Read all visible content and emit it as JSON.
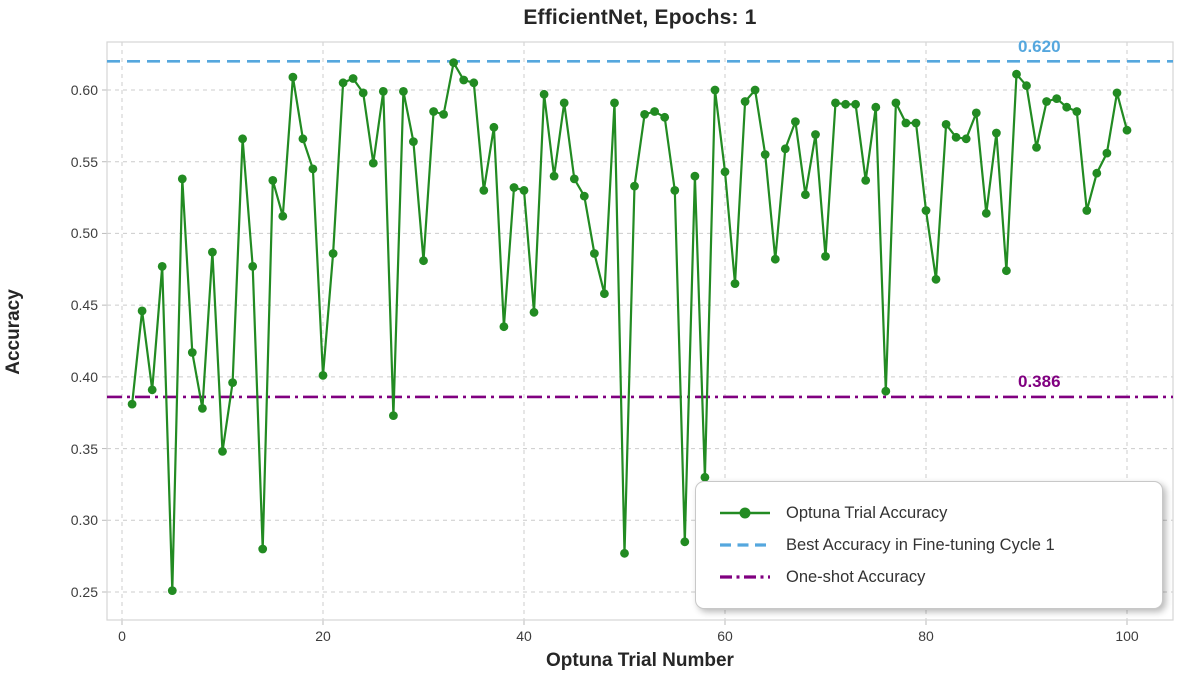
{
  "title": "EfficientNet, Epochs: 1",
  "axes": {
    "x": {
      "label": "Optuna Trial Number",
      "ticks": [
        0,
        20,
        40,
        60,
        80,
        100
      ],
      "range": [
        -1.5,
        104.6
      ]
    },
    "y": {
      "label": "Accuracy",
      "tick_labels": [
        "0.25",
        "0.30",
        "0.35",
        "0.40",
        "0.45",
        "0.50",
        "0.55",
        "0.60"
      ],
      "tick_values": [
        0.25,
        0.3,
        0.35,
        0.4,
        0.45,
        0.5,
        0.55,
        0.6
      ],
      "range": [
        0.2305,
        0.6335
      ]
    }
  },
  "reference_lines": {
    "best": {
      "annotation": "0.620",
      "value": 0.62,
      "color": "#55A7DE",
      "dash": "13 7"
    },
    "one_shot": {
      "annotation": "0.386",
      "value": 0.386,
      "color": "#800080",
      "dash": "15 5 3 5"
    }
  },
  "legend": {
    "items": [
      {
        "label": "Optuna Trial Accuracy",
        "color": "#228B22",
        "style": "solid-line-with-marker"
      },
      {
        "label": "Best Accuracy in Fine-tuning Cycle 1",
        "color": "#55A7DE",
        "style": "dashed"
      },
      {
        "label": "One-shot Accuracy",
        "color": "#800080",
        "style": "dash-dot"
      }
    ]
  },
  "style": {
    "series_color": "#228B22",
    "grid_color": "#cccccc",
    "border_color": "#d6d6d6",
    "tick_color": "#bbbbbb"
  },
  "chart_data": {
    "type": "line",
    "title": "EfficientNet, Epochs: 1",
    "xlabel": "Optuna Trial Number",
    "ylabel": "Accuracy",
    "x": {
      "start": 1,
      "step": 1,
      "count": 100
    },
    "series": [
      {
        "name": "Optuna Trial Accuracy",
        "color": "#228B22",
        "marker": "circle",
        "values": [
          0.381,
          0.446,
          0.391,
          0.477,
          0.251,
          0.538,
          0.417,
          0.378,
          0.487,
          0.348,
          0.396,
          0.566,
          0.477,
          0.28,
          0.537,
          0.512,
          0.609,
          0.566,
          0.545,
          0.401,
          0.486,
          0.605,
          0.608,
          0.598,
          0.549,
          0.599,
          0.373,
          0.599,
          0.564,
          0.481,
          0.585,
          0.583,
          0.619,
          0.607,
          0.605,
          0.53,
          0.574,
          0.435,
          0.532,
          0.53,
          0.445,
          0.597,
          0.54,
          0.591,
          0.538,
          0.526,
          0.486,
          0.458,
          0.591,
          0.277,
          0.533,
          0.583,
          0.585,
          0.581,
          0.53,
          0.285,
          0.54,
          0.33,
          0.6,
          0.543,
          0.465,
          0.592,
          0.6,
          0.555,
          0.482,
          0.559,
          0.578,
          0.527,
          0.569,
          0.484,
          0.591,
          0.59,
          0.59,
          0.537,
          0.588,
          0.39,
          0.591,
          0.577,
          0.577,
          0.516,
          0.468,
          0.576,
          0.567,
          0.566,
          0.584,
          0.514,
          0.57,
          0.474,
          0.611,
          0.603,
          0.56,
          0.592,
          0.594,
          0.588,
          0.585,
          0.516,
          0.542,
          0.556,
          0.598,
          0.572
        ]
      }
    ],
    "reference_lines": [
      {
        "name": "Best Accuracy in Fine-tuning Cycle 1",
        "value": 0.62,
        "color": "#55A7DE",
        "style": "dashed"
      },
      {
        "name": "One-shot Accuracy",
        "value": 0.386,
        "color": "#800080",
        "style": "dash-dot"
      }
    ],
    "annotations": [
      {
        "text": "0.620",
        "color": "#55A7DE"
      },
      {
        "text": "0.386",
        "color": "#800080"
      }
    ],
    "xlim": [
      -1.5,
      104.6
    ],
    "ylim": [
      0.2305,
      0.6335
    ],
    "grid": true,
    "legend_position": "lower right"
  }
}
